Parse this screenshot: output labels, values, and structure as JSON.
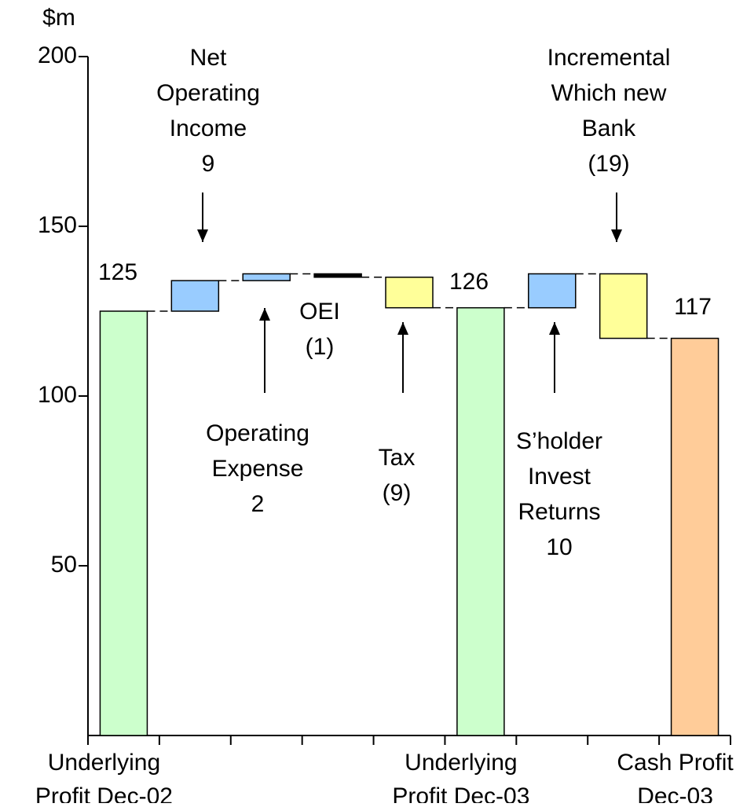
{
  "chart_data": {
    "type": "waterfall",
    "y_label": "$m",
    "categories": [
      "Underlying Profit Dec-02",
      null,
      null,
      null,
      null,
      "Underlying Profit Dec-03",
      null,
      null,
      "Cash Profit Dec-03"
    ],
    "step_names": [
      null,
      "Net Operating Income",
      "Operating Expense",
      "OEI",
      "Tax",
      null,
      "S’holder Invest Returns",
      "Incremental Which new Bank",
      null
    ],
    "values": [
      125,
      9,
      2,
      -1,
      -9,
      126,
      10,
      -19,
      117
    ],
    "value_labels": [
      "125",
      "9",
      "2",
      "(1)",
      "(9)",
      "126",
      "10",
      "(19)",
      "117"
    ],
    "totals": [
      true,
      false,
      false,
      false,
      false,
      true,
      false,
      false,
      true
    ],
    "colors": [
      "#ccffcc",
      "#99ccff",
      "#99ccff",
      "#000000",
      "#ffff99",
      "#ccffcc",
      "#99ccff",
      "#ffff99",
      "#ffcc99"
    ],
    "ylim": [
      0,
      200
    ],
    "yticks": [
      50,
      100,
      150,
      200
    ]
  }
}
